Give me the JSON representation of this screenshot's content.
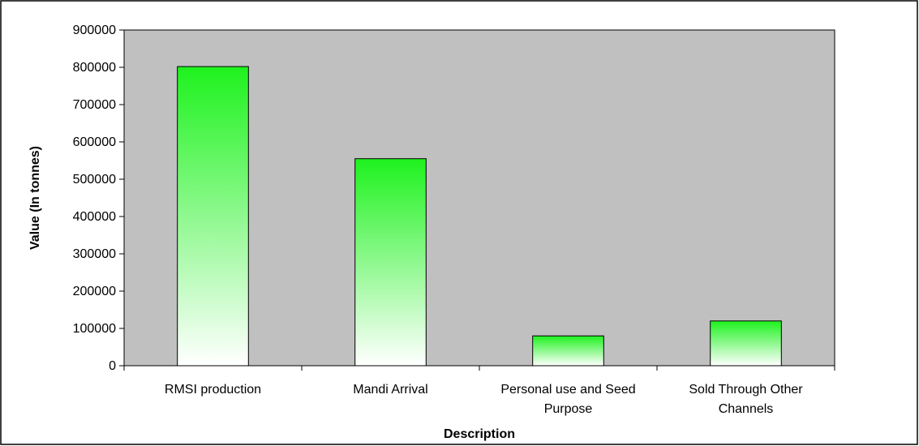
{
  "chart_data": {
    "type": "bar",
    "title": "",
    "xlabel": "Description",
    "ylabel": "Value (In tonnes)",
    "categories": [
      [
        "RMSI production"
      ],
      [
        "Mandi Arrival"
      ],
      [
        "Personal use and Seed",
        "Purpose"
      ],
      [
        "Sold Through Other",
        "Channels"
      ]
    ],
    "values": [
      802000,
      555000,
      80000,
      120000
    ],
    "ylim": [
      0,
      900000
    ],
    "yticks": [
      "0",
      "100000",
      "200000",
      "300000",
      "400000",
      "500000",
      "600000",
      "700000",
      "800000",
      "900000"
    ],
    "grid": false,
    "legend": "none",
    "colors": {
      "plot_background": "#c0c0c0",
      "bar_gradient_top": "#1ef21e",
      "bar_gradient_bottom": "#ffffff",
      "bar_outline": "#000000"
    }
  }
}
